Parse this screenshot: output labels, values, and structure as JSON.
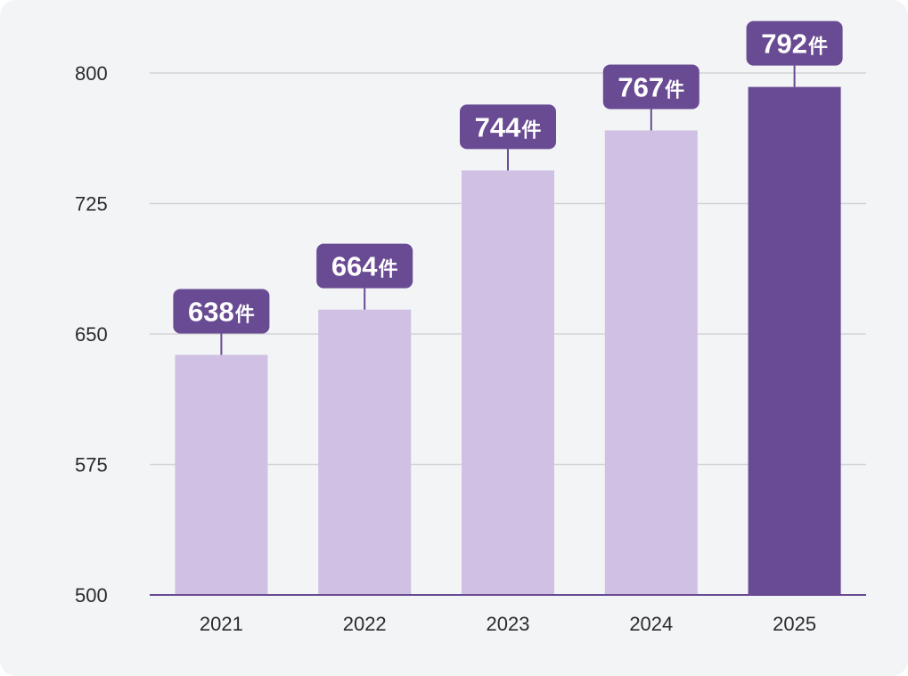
{
  "chart_data": {
    "type": "bar",
    "title": "",
    "xlabel": "",
    "ylabel": "",
    "categories": [
      "2021",
      "2022",
      "2023",
      "2024",
      "2025"
    ],
    "values": [
      638,
      664,
      744,
      767,
      792
    ],
    "value_unit": "件",
    "ylim": [
      500,
      800
    ],
    "yticks": [
      500,
      575,
      650,
      725,
      800
    ],
    "highlight_index": 4,
    "grid": true,
    "colors": {
      "bar": "#cfc0e4",
      "bar_highlight": "#694b93",
      "label_bg": "#694b93",
      "label_text": "#ffffff",
      "grid": "#d4d4d8",
      "axis": "#694b93",
      "background": "#f3f4f6"
    }
  }
}
